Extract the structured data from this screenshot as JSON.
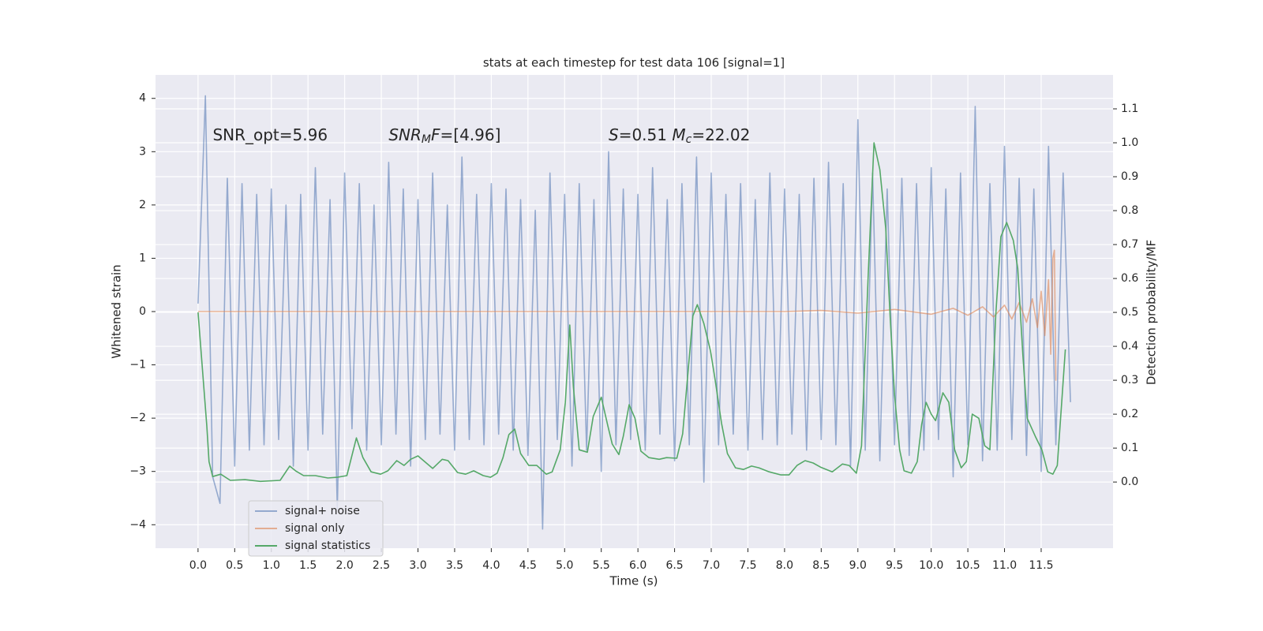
{
  "chart_data": {
    "type": "line",
    "title": "stats at each timestep for test data 106 [signal=1]",
    "xlabel": "Time (s)",
    "ylabel": "Whitened strain",
    "y2label": "Detection probability/MF",
    "xlim": [
      -0.58,
      12.48
    ],
    "ylim": [
      -4.44,
      4.44
    ],
    "y2lim": [
      -0.195,
      1.2
    ],
    "xticks": [
      {
        "value": 0,
        "label": "0.0"
      },
      0.5,
      {
        "value": 1,
        "label": "1.0"
      },
      1.5,
      {
        "value": 2,
        "label": "2.0"
      },
      2.5,
      {
        "value": 3,
        "label": "3.0"
      },
      3.5,
      {
        "value": 4,
        "label": "4.0"
      },
      4.5,
      {
        "value": 5,
        "label": "5.0"
      },
      5.5,
      {
        "value": 6,
        "label": "6.0"
      },
      6.5,
      {
        "value": 7,
        "label": "7.0"
      },
      7.5,
      {
        "value": 8,
        "label": "8.0"
      },
      8.5,
      {
        "value": 9,
        "label": "9.0"
      },
      9.5,
      {
        "value": 10,
        "label": "10.0"
      },
      10.5,
      {
        "value": 11,
        "label": "11.0"
      },
      11.5
    ],
    "yticks": [
      {
        "value": -4,
        "label": "−4"
      },
      {
        "value": -3,
        "label": "−3"
      },
      {
        "value": -2,
        "label": "−2"
      },
      {
        "value": -1,
        "label": "−1"
      },
      0,
      1,
      2,
      3,
      4
    ],
    "y2ticks": [
      {
        "value": 0,
        "label": "0.0"
      },
      0.1,
      0.2,
      0.3,
      0.4,
      0.5,
      0.6,
      0.7,
      0.8,
      0.9,
      {
        "value": 1,
        "label": "1.0"
      },
      1.1
    ],
    "grid": true,
    "legend": "lower left",
    "annotations": [
      [
        {
          "text": "SNR_opt=5.96",
          "x": 0.2,
          "y": 3.3
        }
      ],
      [
        {
          "text": "SNR",
          "style": "italic",
          "x": 2.6,
          "y": 3.3
        },
        {
          "text": "M",
          "style": "italic-sub"
        },
        {
          "text": "F",
          "style": "italic"
        },
        {
          "text": "=[4.96]"
        }
      ],
      [
        {
          "text": "S",
          "style": "italic",
          "x": 5.6,
          "y": 3.3
        },
        {
          "text": "=0.51   "
        },
        {
          "text": "M",
          "style": "italic"
        },
        {
          "text": "c",
          "style": "italic-sub"
        },
        {
          "text": "=22.02"
        }
      ]
    ],
    "series": [
      {
        "name": "signal+ noise",
        "color": "#4c72b0",
        "alpha": 0.55,
        "x": [
          0.0,
          0.1,
          0.2,
          0.3,
          0.4,
          0.5,
          0.6,
          0.7,
          0.8,
          0.9,
          1.0,
          1.1,
          1.2,
          1.3,
          1.4,
          1.5,
          1.6,
          1.7,
          1.8,
          1.9,
          2.0,
          2.1,
          2.2,
          2.3,
          2.4,
          2.5,
          2.6,
          2.7,
          2.8,
          2.9,
          3.0,
          3.1,
          3.2,
          3.3,
          3.4,
          3.5,
          3.6,
          3.7,
          3.8,
          3.9,
          4.0,
          4.1,
          4.2,
          4.3,
          4.4,
          4.5,
          4.6,
          4.7,
          4.8,
          4.9,
          5.0,
          5.1,
          5.2,
          5.3,
          5.4,
          5.5,
          5.6,
          5.7,
          5.8,
          5.9,
          6.0,
          6.1,
          6.2,
          6.3,
          6.4,
          6.5,
          6.6,
          6.7,
          6.8,
          6.9,
          7.0,
          7.1,
          7.2,
          7.3,
          7.4,
          7.5,
          7.6,
          7.7,
          7.8,
          7.9,
          8.0,
          8.1,
          8.2,
          8.3,
          8.4,
          8.5,
          8.6,
          8.7,
          8.8,
          8.9,
          9.0,
          9.1,
          9.2,
          9.3,
          9.4,
          9.5,
          9.6,
          9.7,
          9.8,
          9.9,
          10.0,
          10.1,
          10.2,
          10.3,
          10.4,
          10.5,
          10.6,
          10.7,
          10.8,
          10.9,
          11.0,
          11.1,
          11.2,
          11.3,
          11.4,
          11.5,
          11.6,
          11.7,
          11.8,
          11.9
        ],
        "values": [
          0.15,
          4.05,
          -3.1,
          -3.6,
          2.5,
          -2.9,
          2.4,
          -2.6,
          2.2,
          -2.5,
          2.3,
          -2.4,
          2.0,
          -2.9,
          2.2,
          -2.6,
          2.7,
          -2.3,
          2.1,
          -3.7,
          2.6,
          -2.2,
          2.4,
          -2.6,
          2.0,
          -2.5,
          2.8,
          -2.3,
          2.3,
          -2.9,
          2.1,
          -2.4,
          2.6,
          -2.3,
          2.0,
          -2.6,
          2.9,
          -2.4,
          2.2,
          -2.5,
          2.4,
          -2.3,
          2.3,
          -2.6,
          2.1,
          -2.7,
          1.9,
          -4.08,
          2.6,
          -2.4,
          2.2,
          -2.9,
          2.4,
          -2.6,
          2.1,
          -3.0,
          3.0,
          -2.5,
          2.3,
          -2.4,
          2.2,
          -2.6,
          2.7,
          -2.3,
          2.1,
          -2.8,
          2.4,
          -2.5,
          2.9,
          -3.2,
          2.6,
          -2.5,
          2.2,
          -2.3,
          2.4,
          -2.6,
          2.1,
          -2.4,
          2.6,
          -2.5,
          2.3,
          -2.3,
          2.2,
          -2.6,
          2.5,
          -2.4,
          2.8,
          -2.5,
          2.4,
          -2.9,
          3.6,
          -2.6,
          2.6,
          -2.8,
          2.3,
          -2.5,
          2.5,
          -2.7,
          2.4,
          -2.6,
          2.7,
          -2.4,
          2.3,
          -3.1,
          2.6,
          -2.5,
          3.85,
          -2.8,
          2.4,
          -2.6,
          3.1,
          -2.4,
          2.5,
          -2.7,
          2.3,
          -3.0,
          3.1,
          -2.5,
          2.6,
          -1.7
        ]
      },
      {
        "name": "signal only",
        "color": "#dd8452",
        "alpha": 0.6,
        "x": [
          0,
          8.0,
          8.5,
          9.0,
          9.5,
          10.0,
          10.3,
          10.5,
          10.7,
          10.85,
          11.0,
          11.1,
          11.2,
          11.3,
          11.38,
          11.45,
          11.5,
          11.55,
          11.6,
          11.63,
          11.66,
          11.68,
          11.7
        ],
        "values": [
          0,
          0,
          0.02,
          -0.03,
          0.04,
          -0.05,
          0.06,
          -0.07,
          0.09,
          -0.1,
          0.12,
          -0.14,
          0.17,
          -0.2,
          0.24,
          -0.3,
          0.38,
          -0.45,
          0.6,
          -0.8,
          1.0,
          1.15,
          -1.3
        ]
      },
      {
        "name": "signal statistics",
        "color": "#55a868",
        "alpha": 1,
        "axis": "y2",
        "x": [
          0,
          0.12,
          0.15,
          0.2,
          0.31,
          0.44,
          0.64,
          0.85,
          1.12,
          1.25,
          1.33,
          1.44,
          1.6,
          1.77,
          1.9,
          2.03,
          2.16,
          2.25,
          2.36,
          2.49,
          2.59,
          2.71,
          2.81,
          2.9,
          3.0,
          3.2,
          3.33,
          3.41,
          3.54,
          3.65,
          3.76,
          3.89,
          3.99,
          4.08,
          4.16,
          4.24,
          4.32,
          4.4,
          4.51,
          4.62,
          4.75,
          4.83,
          4.94,
          5.01,
          5.07,
          5.12,
          5.2,
          5.31,
          5.39,
          5.5,
          5.59,
          5.65,
          5.74,
          5.8,
          5.88,
          5.96,
          6.04,
          6.15,
          6.29,
          6.39,
          6.53,
          6.61,
          6.68,
          6.75,
          6.81,
          6.9,
          6.99,
          7.05,
          7.14,
          7.22,
          7.33,
          7.44,
          7.55,
          7.65,
          7.79,
          7.95,
          8.06,
          8.17,
          8.28,
          8.39,
          8.49,
          8.65,
          8.79,
          8.88,
          8.98,
          9.05,
          9.14,
          9.22,
          9.3,
          9.38,
          9.44,
          9.5,
          9.57,
          9.63,
          9.73,
          9.81,
          9.87,
          9.93,
          10.0,
          10.06,
          10.16,
          10.24,
          10.32,
          10.41,
          10.48,
          10.56,
          10.65,
          10.73,
          10.8,
          10.88,
          10.95,
          11.03,
          11.12,
          11.18,
          11.25,
          11.31,
          11.42,
          11.51,
          11.59,
          11.66,
          11.72,
          11.78,
          11.83
        ],
        "values": [
          0.5,
          0.165,
          0.06,
          0.016,
          0.023,
          0.005,
          0.007,
          0.002,
          0.005,
          0.047,
          0.033,
          0.019,
          0.019,
          0.012,
          0.014,
          0.019,
          0.13,
          0.072,
          0.03,
          0.023,
          0.033,
          0.063,
          0.049,
          0.067,
          0.077,
          0.04,
          0.067,
          0.063,
          0.028,
          0.023,
          0.033,
          0.019,
          0.014,
          0.026,
          0.072,
          0.14,
          0.156,
          0.084,
          0.049,
          0.049,
          0.023,
          0.03,
          0.095,
          0.235,
          0.463,
          0.28,
          0.095,
          0.088,
          0.193,
          0.25,
          0.165,
          0.112,
          0.081,
          0.135,
          0.228,
          0.188,
          0.091,
          0.072,
          0.067,
          0.072,
          0.07,
          0.142,
          0.316,
          0.49,
          0.523,
          0.467,
          0.386,
          0.305,
          0.174,
          0.084,
          0.042,
          0.037,
          0.047,
          0.042,
          0.03,
          0.021,
          0.021,
          0.049,
          0.063,
          0.056,
          0.044,
          0.03,
          0.053,
          0.049,
          0.026,
          0.107,
          0.607,
          1.0,
          0.921,
          0.747,
          0.49,
          0.258,
          0.095,
          0.033,
          0.026,
          0.06,
          0.17,
          0.235,
          0.2,
          0.181,
          0.263,
          0.235,
          0.095,
          0.042,
          0.06,
          0.2,
          0.188,
          0.107,
          0.095,
          0.49,
          0.723,
          0.765,
          0.712,
          0.63,
          0.374,
          0.188,
          0.135,
          0.095,
          0.03,
          0.023,
          0.049,
          0.235,
          0.391
        ]
      }
    ]
  }
}
